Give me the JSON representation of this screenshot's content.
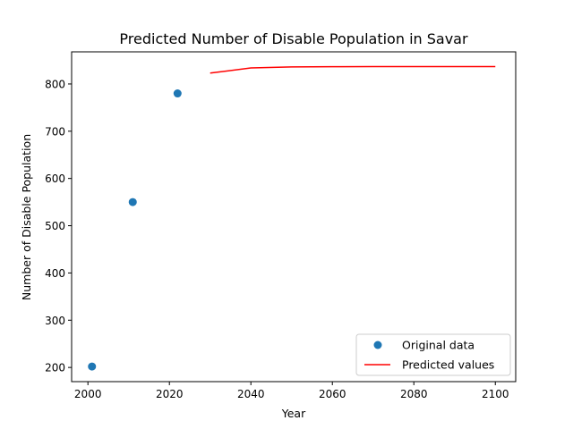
{
  "chart_data": {
    "type": "scatter",
    "title": "Predicted Number of Disable Population in Savar",
    "xlabel": "Year",
    "ylabel": "Number of Disable Population",
    "xlim": [
      1996,
      2105
    ],
    "ylim": [
      170,
      868
    ],
    "x_ticks": [
      2000,
      2020,
      2040,
      2060,
      2080,
      2100
    ],
    "y_ticks": [
      200,
      300,
      400,
      500,
      600,
      700,
      800
    ],
    "grid": false,
    "legend_position": "lower right",
    "series": [
      {
        "name": "Original data",
        "kind": "scatter",
        "color": "#1f77b4",
        "x": [
          2001,
          2011,
          2022
        ],
        "y": [
          202,
          550,
          780
        ]
      },
      {
        "name": "Predicted values",
        "kind": "line",
        "color": "#ff0000",
        "x": [
          2030,
          2040,
          2050,
          2060,
          2070,
          2080,
          2090,
          2100
        ],
        "y": [
          823,
          834,
          836,
          836.5,
          836.7,
          836.8,
          836.8,
          836.8
        ]
      }
    ]
  }
}
